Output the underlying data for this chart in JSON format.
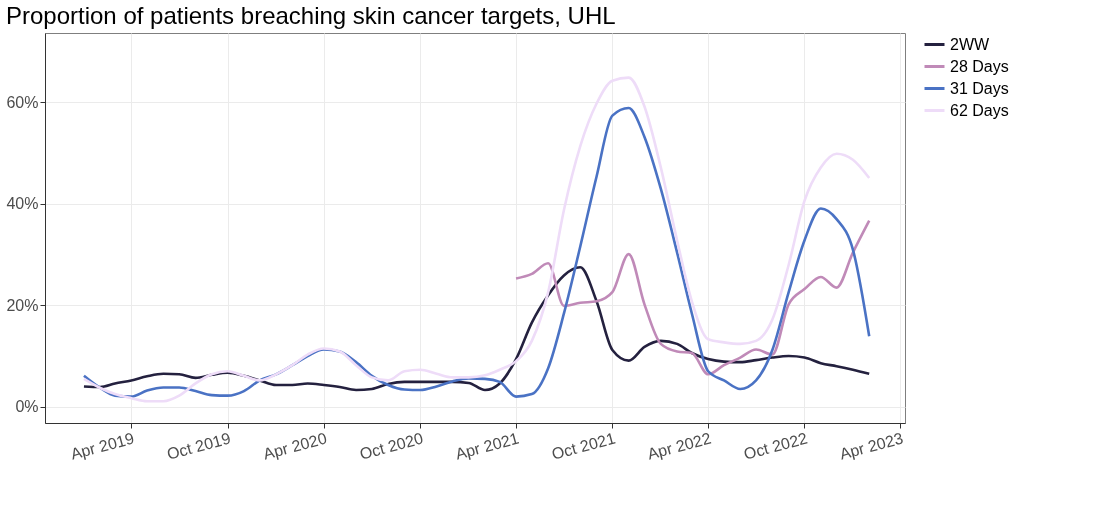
{
  "chart_data": {
    "type": "line",
    "title": "Proportion of patients breaching skin cancer targets, UHL",
    "x": [
      "2019-01",
      "2019-02",
      "2019-03",
      "2019-04",
      "2019-05",
      "2019-06",
      "2019-07",
      "2019-08",
      "2019-09",
      "2019-10",
      "2019-11",
      "2019-12",
      "2020-01",
      "2020-02",
      "2020-03",
      "2020-04",
      "2020-05",
      "2020-06",
      "2020-07",
      "2020-08",
      "2020-09",
      "2020-10",
      "2020-11",
      "2020-12",
      "2021-01",
      "2021-02",
      "2021-03",
      "2021-04",
      "2021-05",
      "2021-06",
      "2021-07",
      "2021-08",
      "2021-09",
      "2021-10",
      "2021-11",
      "2021-12",
      "2022-01",
      "2022-02",
      "2022-03",
      "2022-04",
      "2022-05",
      "2022-06",
      "2022-07",
      "2022-08",
      "2022-09",
      "2022-10",
      "2022-11",
      "2022-12",
      "2023-01",
      "2023-02"
    ],
    "series": [
      {
        "name": "2WW",
        "color": "#24213f",
        "values": [
          4.0,
          3.9,
          4.6,
          5.2,
          6.0,
          6.5,
          6.4,
          5.7,
          6.3,
          6.7,
          6.1,
          5.2,
          4.3,
          4.3,
          4.6,
          4.3,
          3.9,
          3.3,
          3.5,
          4.5,
          4.9,
          4.9,
          4.9,
          4.9,
          4.7,
          3.3,
          4.6,
          9.4,
          16.6,
          22.0,
          25.9,
          27.5,
          20.8,
          11.2,
          9.1,
          11.8,
          13.0,
          12.4,
          10.6,
          9.4,
          8.9,
          8.8,
          9.2,
          9.7,
          10.0,
          9.7,
          8.6,
          8.0,
          7.3,
          6.5
        ]
      },
      {
        "name": "28 Days",
        "color": "#c08ab8",
        "x": [
          "2021-04",
          "2021-05",
          "2021-06",
          "2021-07",
          "2021-08",
          "2021-09",
          "2021-10",
          "2021-11",
          "2021-12",
          "2022-01",
          "2022-02",
          "2022-03",
          "2022-04",
          "2022-05",
          "2022-06",
          "2022-07",
          "2022-08",
          "2022-09",
          "2022-10",
          "2022-11",
          "2022-12",
          "2023-01",
          "2023-02"
        ],
        "values": [
          25.3,
          26.2,
          28.3,
          19.9,
          20.5,
          20.8,
          22.6,
          30.1,
          20.2,
          12.4,
          10.9,
          10.6,
          6.4,
          8.2,
          9.7,
          11.3,
          10.3,
          20.2,
          23.2,
          25.6,
          23.5,
          30.4,
          36.7
        ]
      },
      {
        "name": "31 Days",
        "color": "#4a72c4",
        "values": [
          6.1,
          3.7,
          2.2,
          2.0,
          3.2,
          3.8,
          3.8,
          3.1,
          2.3,
          2.2,
          3.1,
          5.2,
          6.4,
          8.2,
          10.0,
          11.3,
          10.9,
          8.8,
          6.1,
          4.3,
          3.4,
          3.3,
          4.0,
          5.0,
          5.6,
          5.5,
          4.9,
          2.0,
          2.5,
          7.6,
          18.4,
          31.6,
          45.4,
          57.4,
          58.9,
          53.2,
          43.0,
          30.4,
          18.4,
          7.0,
          5.2,
          3.5,
          5.2,
          11.2,
          22.6,
          32.8,
          39.1,
          37.0,
          31.0,
          13.9
        ]
      },
      {
        "name": "62 Days",
        "color": "#eedcf8",
        "values": [
          5.5,
          3.7,
          2.5,
          1.7,
          1.1,
          1.1,
          2.2,
          4.6,
          6.4,
          7.0,
          6.1,
          5.2,
          6.4,
          8.2,
          10.3,
          11.5,
          10.9,
          8.2,
          5.8,
          5.2,
          7.0,
          7.3,
          6.5,
          5.8,
          5.8,
          6.2,
          7.3,
          9.0,
          13.0,
          22.6,
          38.8,
          51.4,
          59.8,
          64.3,
          64.9,
          59.2,
          47.2,
          32.8,
          20.8,
          13.3,
          12.7,
          12.4,
          13.0,
          17.2,
          28.0,
          40.6,
          47.2,
          49.9,
          48.7,
          45.1
        ]
      }
    ],
    "xlim": [
      "2018-10-19",
      "2023-04-10"
    ],
    "xticks": [
      {
        "value": "2019-04-01",
        "label": "Apr 2019"
      },
      {
        "value": "2019-10-01",
        "label": "Oct 2019"
      },
      {
        "value": "2020-04-01",
        "label": "Apr 2020"
      },
      {
        "value": "2020-10-01",
        "label": "Oct 2020"
      },
      {
        "value": "2021-04-01",
        "label": "Apr 2021"
      },
      {
        "value": "2021-10-01",
        "label": "Oct 2021"
      },
      {
        "value": "2022-04-01",
        "label": "Apr 2022"
      },
      {
        "value": "2022-10-01",
        "label": "Oct 2022"
      },
      {
        "value": "2023-04-01",
        "label": "Apr 2023"
      }
    ],
    "ylim": [
      -3.2,
      73.7
    ],
    "yticks": [
      {
        "value": 0,
        "label": "0%"
      },
      {
        "value": 20,
        "label": "20%"
      },
      {
        "value": 40,
        "label": "40%"
      },
      {
        "value": 60,
        "label": "60%"
      }
    ],
    "grid": true,
    "legend": "right",
    "line_style": "solid",
    "marker": "none"
  }
}
